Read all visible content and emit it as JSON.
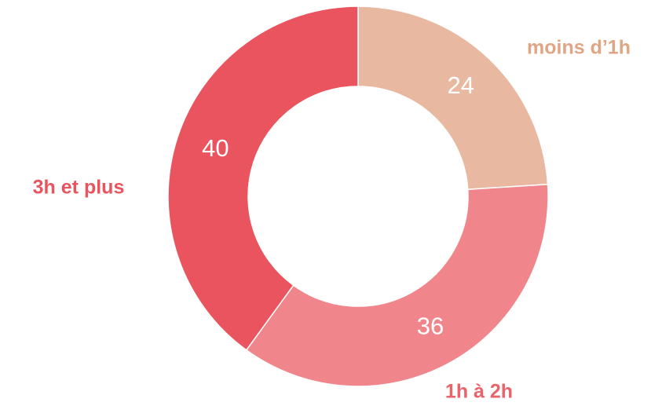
{
  "chart_data": {
    "type": "donut",
    "categories": [
      "moins d’1h",
      "1h à 2h",
      "3h et plus"
    ],
    "values": [
      24,
      36,
      40
    ],
    "colors": [
      "#e8b9a0",
      "#f0868c",
      "#e9545e"
    ],
    "label_colors": [
      "#e0a585",
      "#e9636b",
      "#e9545e"
    ]
  }
}
